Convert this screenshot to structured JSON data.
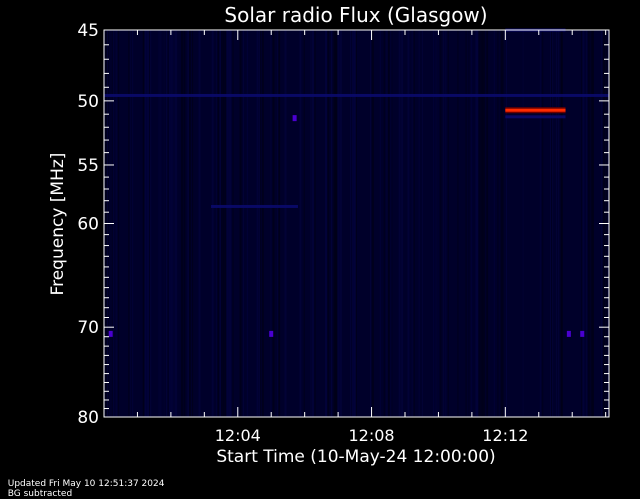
{
  "chart_data": {
    "type": "heatmap",
    "title": "Solar radio Flux (Glasgow)",
    "xlabel": "Start Time (10-May-24 12:00:00)",
    "ylabel": "Frequency [MHz]",
    "x_ticks": [
      "12:04",
      "12:08",
      "12:12"
    ],
    "x_tick_values_min": [
      4,
      8,
      12
    ],
    "x_range_min": [
      0,
      15.1
    ],
    "y_ticks": [
      45,
      50,
      55,
      60,
      70,
      80
    ],
    "y_range_mhz": [
      45,
      80
    ],
    "y_scale": "log",
    "grid": false,
    "features": [
      {
        "kind": "emission",
        "t_start_min": 12.0,
        "t_end_min": 13.8,
        "freq_mhz": 50.7,
        "level": "high"
      },
      {
        "kind": "band",
        "t_start_min": 12.0,
        "t_end_min": 13.8,
        "freq_mhz": 51.2,
        "level": "low"
      },
      {
        "kind": "band",
        "t_start_min": 0.0,
        "t_end_min": 15.1,
        "freq_mhz": 49.6,
        "level": "low"
      },
      {
        "kind": "band",
        "t_start_min": 12.0,
        "t_end_min": 13.8,
        "freq_mhz": 45.0,
        "level": "low"
      },
      {
        "kind": "band",
        "t_start_min": 3.2,
        "t_end_min": 5.8,
        "freq_mhz": 58.5,
        "level": "low"
      },
      {
        "kind": "spot",
        "t_min": 0.2,
        "freq_mhz": 70.7,
        "level": "medium"
      },
      {
        "kind": "spot",
        "t_min": 5.0,
        "freq_mhz": 70.7,
        "level": "medium"
      },
      {
        "kind": "spot",
        "t_min": 13.9,
        "freq_mhz": 70.7,
        "level": "medium"
      },
      {
        "kind": "spot",
        "t_min": 14.3,
        "freq_mhz": 70.7,
        "level": "medium"
      },
      {
        "kind": "spot",
        "t_min": 5.7,
        "freq_mhz": 51.3,
        "level": "medium"
      }
    ],
    "colors": {
      "background": "#000000",
      "plot_base": "#00002a",
      "low": "#0a0a70",
      "medium": "#4a00d0",
      "high": "#ff2a00",
      "axis": "#ffffff"
    }
  },
  "footer": {
    "updated": "Updated Fri May 10 12:51:37 2024",
    "note": "BG subtracted"
  }
}
